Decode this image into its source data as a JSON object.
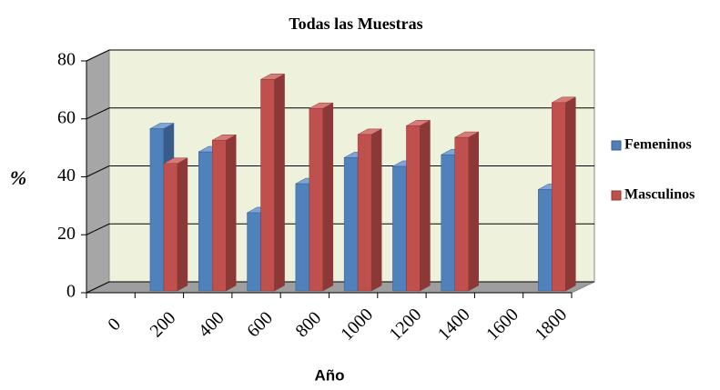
{
  "chart_data": {
    "type": "bar3d",
    "title": "Todas las Muestras",
    "x_label": "Año",
    "y_label": "%",
    "categories": [
      "0",
      "200",
      "400",
      "600",
      "800",
      "1000",
      "1200",
      "1400",
      "1600",
      "1800"
    ],
    "series": [
      {
        "name": "Femeninos",
        "color": "#4f81bd",
        "values": [
          null,
          56,
          48,
          27,
          37,
          46,
          43,
          47,
          null,
          35
        ]
      },
      {
        "name": "Masculinos",
        "color": "#c0504d",
        "values": [
          null,
          44,
          52,
          73,
          63,
          54,
          57,
          53,
          null,
          65
        ]
      }
    ],
    "ylim": [
      0,
      80
    ],
    "yticks": [
      0,
      20,
      40,
      60,
      80
    ],
    "grid": true,
    "legend": "right"
  }
}
